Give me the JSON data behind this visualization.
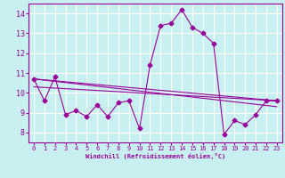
{
  "xlabel": "Windchill (Refroidissement éolien,°C)",
  "background_color": "#c8f0f0",
  "grid_color": "#ffffff",
  "line_color": "#990099",
  "xlim": [
    -0.5,
    23.5
  ],
  "ylim": [
    7.5,
    14.5
  ],
  "xticks": [
    0,
    1,
    2,
    3,
    4,
    5,
    6,
    7,
    8,
    9,
    10,
    11,
    12,
    13,
    14,
    15,
    16,
    17,
    18,
    19,
    20,
    21,
    22,
    23
  ],
  "yticks": [
    8,
    9,
    10,
    11,
    12,
    13,
    14
  ],
  "series1_x": [
    0,
    1,
    2,
    3,
    4,
    5,
    6,
    7,
    8,
    9,
    10,
    11,
    12,
    13,
    14,
    15,
    16,
    17,
    18,
    19,
    20,
    21,
    22,
    23
  ],
  "series1_y": [
    10.7,
    9.6,
    10.8,
    8.9,
    9.1,
    8.8,
    9.4,
    8.8,
    9.5,
    9.6,
    8.2,
    11.4,
    13.4,
    13.5,
    14.2,
    13.3,
    13.0,
    12.5,
    7.9,
    8.6,
    8.4,
    8.9,
    9.6,
    9.6
  ],
  "series2_x": [
    0,
    23
  ],
  "series2_y": [
    10.7,
    9.6
  ],
  "series3_x": [
    0,
    23
  ],
  "series3_y": [
    10.7,
    9.3
  ],
  "series4_x": [
    0,
    23
  ],
  "series4_y": [
    10.3,
    9.6
  ]
}
